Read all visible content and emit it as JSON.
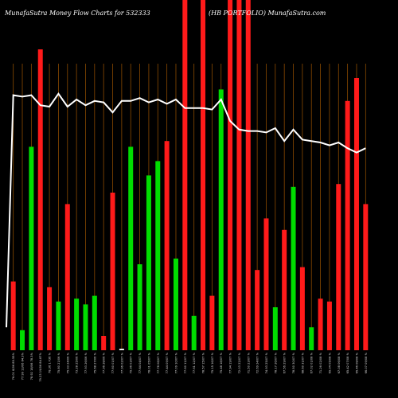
{
  "header": {
    "left": "MunafaSutra  Money Flow  Charts for 532333",
    "right": "(HB PORTFOLIO) MunafaSutra.com"
  },
  "chart_data": {
    "type": "bar",
    "colors": {
      "green": "#00dd00",
      "red": "#ff1a1a",
      "grid": "#8a4a00",
      "line": "#ffffff",
      "background": "#000000"
    },
    "bars": [
      {
        "v": 0.24,
        "c": "red"
      },
      {
        "v": 0.07,
        "c": "green"
      },
      {
        "v": 0.71,
        "c": "green"
      },
      {
        "v": 1.05,
        "c": "red"
      },
      {
        "v": 0.22,
        "c": "red"
      },
      {
        "v": 0.17,
        "c": "green"
      },
      {
        "v": 0.51,
        "c": "red"
      },
      {
        "v": 0.18,
        "c": "green"
      },
      {
        "v": 0.16,
        "c": "green"
      },
      {
        "v": 0.19,
        "c": "green"
      },
      {
        "v": 0.05,
        "c": "red"
      },
      {
        "v": 0.55,
        "c": "red"
      },
      {
        "v": 0.005,
        "c": "white"
      },
      {
        "v": 0.71,
        "c": "green"
      },
      {
        "v": 0.3,
        "c": "green"
      },
      {
        "v": 0.61,
        "c": "green"
      },
      {
        "v": 0.66,
        "c": "green"
      },
      {
        "v": 0.73,
        "c": "red"
      },
      {
        "v": 0.32,
        "c": "green"
      },
      {
        "v": 1.25,
        "c": "red"
      },
      {
        "v": 0.12,
        "c": "green"
      },
      {
        "v": 1.25,
        "c": "red"
      },
      {
        "v": 0.19,
        "c": "red"
      },
      {
        "v": 0.91,
        "c": "green"
      },
      {
        "v": 1.25,
        "c": "red"
      },
      {
        "v": 1.25,
        "c": "red"
      },
      {
        "v": 1.25,
        "c": "red"
      },
      {
        "v": 0.28,
        "c": "red"
      },
      {
        "v": 0.46,
        "c": "red"
      },
      {
        "v": 0.15,
        "c": "green"
      },
      {
        "v": 0.42,
        "c": "red"
      },
      {
        "v": 0.57,
        "c": "green"
      },
      {
        "v": 0.29,
        "c": "red"
      },
      {
        "v": 0.08,
        "c": "green"
      },
      {
        "v": 0.18,
        "c": "red"
      },
      {
        "v": 0.17,
        "c": "red"
      },
      {
        "v": 0.58,
        "c": "red"
      },
      {
        "v": 0.87,
        "c": "red"
      },
      {
        "v": 0.95,
        "c": "red"
      },
      {
        "v": 0.51,
        "c": "red"
      }
    ],
    "price_line": [
      0.89,
      0.885,
      0.89,
      0.855,
      0.85,
      0.895,
      0.85,
      0.875,
      0.855,
      0.87,
      0.865,
      0.83,
      0.87,
      0.87,
      0.88,
      0.865,
      0.875,
      0.86,
      0.875,
      0.845,
      0.845,
      0.845,
      0.84,
      0.875,
      0.8,
      0.77,
      0.765,
      0.765,
      0.76,
      0.775,
      0.73,
      0.77,
      0.735,
      0.73,
      0.725,
      0.715,
      0.725,
      0.705,
      0.69,
      0.705
    ],
    "price_line_start": 0.08,
    "x_labels": [
      "76.01 8/06 85.55%",
      "77.99 13/06 84.3%",
      "78.92 18/06 78.3%",
      "79.23 19/06 84.87%",
      "78.36 1 F36 %",
      "75.80 21/06 %",
      "75.93 24/06 %",
      "73.28 25/06 %",
      "77.93 26/06 %",
      "75.68 27/06 %",
      "77.96 28/06 %",
      "77.60 01/07 %",
      "77.96 02/07 %",
      "79.96 03/07 %",
      "77.64 04/07 %",
      "78.01 05/07 %",
      "77.78 08/07 %",
      "77.44 09/07 %",
      "77.09 10/07 %",
      "77.60 11/07 %",
      "77.61 12/07 %",
      "78.57 15/07 %",
      "75.15 16/07 %",
      "75.48 18/07 %",
      "77.94 19/07 %",
      "72.03 22/07 %",
      "71.50 23/07 %",
      "72.69 24/07 %",
      "74.93 25/07 %",
      "78.17 26/07 %",
      "67.56 29/07 %",
      "78.50 30/07 %",
      "68.60 31/07 %",
      "67.02 01/08 %",
      "71.26 02/08 %",
      "69.04 05/08 %",
      "67.08 06/08 %",
      "65.42 07/08 %",
      "65.46 08/08 %",
      "66.07 09/08 %"
    ]
  }
}
